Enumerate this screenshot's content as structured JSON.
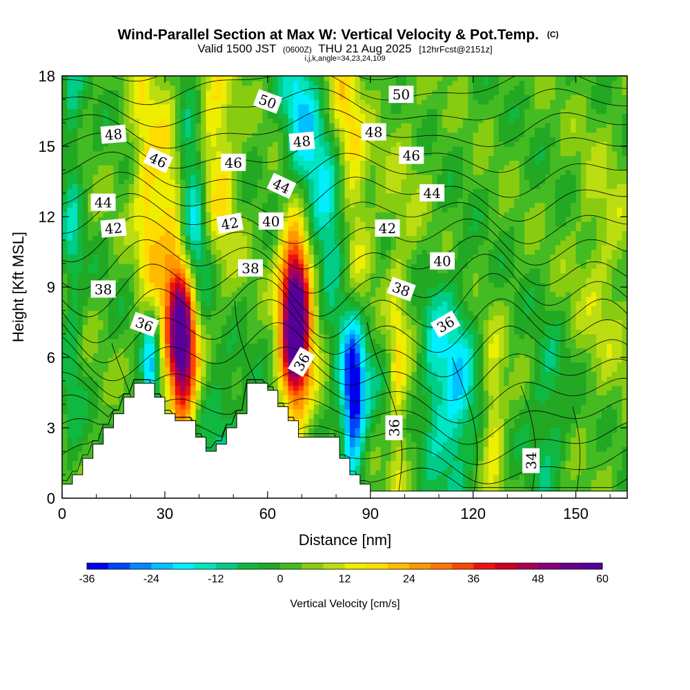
{
  "chart_data": {
    "type": "heatmap",
    "title": "Wind-Parallel Section at Max W: Vertical Velocity & Pot.Temp.",
    "copyright": "(C)",
    "valid_prefix": "Valid 1500 JST",
    "valid_utc": "(0600Z)",
    "valid_date": "THU 21 Aug 2025",
    "forecast_note": "[12hrFcst@2151z]",
    "indices": "i,j,k,angle=34,23,24,109",
    "xlabel": "Distance [nm]",
    "ylabel": "Height [Kft MSL]",
    "xlim": [
      0,
      165
    ],
    "ylim": [
      0,
      18
    ],
    "x_ticks": [
      "0",
      "30",
      "60",
      "90",
      "120",
      "150"
    ],
    "y_ticks": [
      "0",
      "3",
      "6",
      "9",
      "12",
      "15",
      "18"
    ],
    "colorbar": {
      "label": "Vertical Velocity [cm/s]",
      "min": -36,
      "max": 60,
      "step": 4,
      "tick_labels": [
        "-36",
        "-24",
        "-12",
        "0",
        "12",
        "24",
        "36",
        "48",
        "60"
      ],
      "colors": [
        "#0000ee",
        "#0044ff",
        "#0088ff",
        "#00c0ff",
        "#00eeff",
        "#00e4c0",
        "#00cc88",
        "#10b840",
        "#22a822",
        "#44bb22",
        "#88cc11",
        "#bbdd11",
        "#eeee00",
        "#ffdd00",
        "#ffbb00",
        "#ff9900",
        "#ff7700",
        "#ff4400",
        "#ee1111",
        "#cc0022",
        "#aa0055",
        "#880077",
        "#660088",
        "#550099"
      ]
    },
    "terrain_profile": [
      [
        0,
        0.6
      ],
      [
        3,
        0.6
      ],
      [
        3,
        1.0
      ],
      [
        6,
        1.0
      ],
      [
        6,
        1.7
      ],
      [
        9,
        1.7
      ],
      [
        9,
        2.3
      ],
      [
        12,
        2.3
      ],
      [
        12,
        3.0
      ],
      [
        15,
        3.0
      ],
      [
        15,
        3.6
      ],
      [
        18,
        3.6
      ],
      [
        18,
        4.3
      ],
      [
        21,
        4.3
      ],
      [
        21,
        4.9
      ],
      [
        27,
        4.9
      ],
      [
        27,
        4.3
      ],
      [
        30,
        4.3
      ],
      [
        30,
        3.6
      ],
      [
        33,
        3.6
      ],
      [
        33,
        3.3
      ],
      [
        39,
        3.3
      ],
      [
        39,
        2.6
      ],
      [
        42,
        2.6
      ],
      [
        42,
        2.0
      ],
      [
        45,
        2.0
      ],
      [
        45,
        2.3
      ],
      [
        48,
        2.3
      ],
      [
        48,
        3.0
      ],
      [
        51,
        3.0
      ],
      [
        51,
        3.6
      ],
      [
        54,
        3.6
      ],
      [
        54,
        4.9
      ],
      [
        60,
        4.9
      ],
      [
        60,
        4.6
      ],
      [
        63,
        4.6
      ],
      [
        63,
        3.9
      ],
      [
        66,
        3.9
      ],
      [
        66,
        3.3
      ],
      [
        69,
        3.3
      ],
      [
        69,
        2.6
      ],
      [
        72,
        2.6
      ],
      [
        72,
        2.6
      ],
      [
        81,
        2.6
      ],
      [
        81,
        1.7
      ],
      [
        84,
        1.7
      ],
      [
        84,
        1.0
      ],
      [
        87,
        1.0
      ],
      [
        87,
        0.6
      ],
      [
        90,
        0.6
      ],
      [
        90,
        0.3
      ],
      [
        165,
        0.3
      ]
    ],
    "w_features": [
      {
        "x": 68,
        "z": 7.6,
        "sx": 3.0,
        "sz": 2.8,
        "w": 64
      },
      {
        "x": 35,
        "z": 6.5,
        "sx": 3.0,
        "sz": 2.3,
        "w": 50
      },
      {
        "x": 33,
        "z": 10.5,
        "sx": 3.5,
        "sz": 5.0,
        "w": 18,
        "tilt": -0.35
      },
      {
        "x": 25,
        "z": 12.5,
        "sx": 3.0,
        "sz": 4.5,
        "w": 16,
        "tilt": -0.35
      },
      {
        "x": 45,
        "z": 15.0,
        "sx": 4.0,
        "sz": 4.0,
        "w": 16,
        "tilt": -0.35
      },
      {
        "x": 84,
        "z": 14.0,
        "sx": 3.5,
        "sz": 5.0,
        "w": 18,
        "tilt": -0.4
      },
      {
        "x": 72,
        "z": 10.0,
        "sx": 4.0,
        "sz": 3.5,
        "w": 10
      },
      {
        "x": 38,
        "z": 12.5,
        "sx": 3.0,
        "sz": 3.0,
        "w": -24,
        "tilt": -0.35
      },
      {
        "x": 70,
        "z": 15.5,
        "sx": 4.0,
        "sz": 3.0,
        "w": -22,
        "tilt": -0.35
      },
      {
        "x": 78,
        "z": 12.0,
        "sx": 4.5,
        "sz": 2.2,
        "w": -22,
        "tilt": -0.35
      },
      {
        "x": 26,
        "z": 5.5,
        "sx": 1.8,
        "sz": 1.7,
        "w": -26
      },
      {
        "x": 85,
        "z": 4.2,
        "sx": 2.2,
        "sz": 2.2,
        "w": -32
      },
      {
        "x": 86,
        "z": 5.5,
        "sx": 5.0,
        "sz": 2.5,
        "w": -14
      },
      {
        "x": 115,
        "z": 4.5,
        "sx": 4.0,
        "sz": 3.0,
        "w": -20
      },
      {
        "x": 108,
        "z": 5.5,
        "sx": 3.0,
        "sz": 3.0,
        "w": -12
      },
      {
        "x": 126,
        "z": 3.5,
        "sx": 2.2,
        "sz": 2.5,
        "w": 14
      },
      {
        "x": 98,
        "z": 4.5,
        "sx": 1.8,
        "sz": 4.0,
        "w": 12
      },
      {
        "x": 142,
        "z": 3.5,
        "sx": 4.0,
        "sz": 2.5,
        "w": -10
      },
      {
        "x": 47,
        "z": 3.0,
        "sx": 5.0,
        "sz": 2.5,
        "w": -10
      },
      {
        "x": 3,
        "z": 12.0,
        "sx": 2.0,
        "sz": 8.0,
        "w": -10
      },
      {
        "x": 158,
        "z": 10.0,
        "sx": 6.0,
        "sz": 4.0,
        "w": 8
      },
      {
        "x": 100,
        "z": 12.0,
        "sx": 6.0,
        "sz": 6.0,
        "w": 4
      }
    ],
    "theta_labels": [
      {
        "text": "50",
        "x": 60,
        "z": 16.9,
        "rot": 20
      },
      {
        "text": "50",
        "x": 99,
        "z": 17.2,
        "rot": 0
      },
      {
        "text": "48",
        "x": 15,
        "z": 15.5,
        "rot": -5
      },
      {
        "text": "48",
        "x": 70,
        "z": 15.2,
        "rot": -5
      },
      {
        "text": "48",
        "x": 91,
        "z": 15.6,
        "rot": 0
      },
      {
        "text": "46",
        "x": 28,
        "z": 14.4,
        "rot": 25
      },
      {
        "text": "46",
        "x": 50,
        "z": 14.3,
        "rot": 0
      },
      {
        "text": "46",
        "x": 102,
        "z": 14.6,
        "rot": 0
      },
      {
        "text": "44",
        "x": 12,
        "z": 12.6,
        "rot": 0
      },
      {
        "text": "44",
        "x": 64,
        "z": 13.3,
        "rot": 25
      },
      {
        "text": "44",
        "x": 108,
        "z": 13.0,
        "rot": 0
      },
      {
        "text": "42",
        "x": 15,
        "z": 11.5,
        "rot": -5
      },
      {
        "text": "42",
        "x": 49,
        "z": 11.7,
        "rot": -10
      },
      {
        "text": "42",
        "x": 95,
        "z": 11.5,
        "rot": 0
      },
      {
        "text": "40",
        "x": 61,
        "z": 11.8,
        "rot": 0
      },
      {
        "text": "40",
        "x": 111,
        "z": 10.1,
        "rot": 0
      },
      {
        "text": "38",
        "x": 12,
        "z": 8.9,
        "rot": 0
      },
      {
        "text": "38",
        "x": 55,
        "z": 9.8,
        "rot": 0
      },
      {
        "text": "38",
        "x": 99,
        "z": 8.9,
        "rot": 20
      },
      {
        "text": "36",
        "x": 24,
        "z": 7.4,
        "rot": 20
      },
      {
        "text": "36",
        "x": 70,
        "z": 5.8,
        "rot": -60
      },
      {
        "text": "36",
        "x": 97,
        "z": 3.0,
        "rot": -90
      },
      {
        "text": "36",
        "x": 112,
        "z": 7.4,
        "rot": -30
      },
      {
        "text": "34",
        "x": 137,
        "z": 1.6,
        "rot": -90
      }
    ]
  }
}
